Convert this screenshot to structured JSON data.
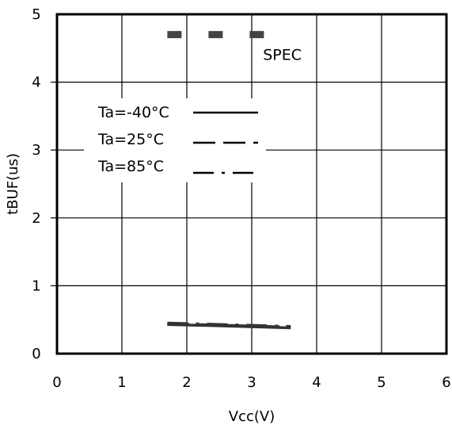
{
  "chart_data": {
    "type": "line",
    "title": "",
    "xlabel": "Vcc(V)",
    "ylabel": "tBUF(us)",
    "xlim": [
      0,
      6
    ],
    "ylim": [
      0,
      5
    ],
    "x_ticks": [
      "0",
      "1",
      "2",
      "3",
      "4",
      "5",
      "6"
    ],
    "y_ticks": [
      "0",
      "1",
      "2",
      "3",
      "4",
      "5"
    ],
    "grid": true,
    "legend_position": "upper-left",
    "series": [
      {
        "name": "Ta=-40°C",
        "style": "solid",
        "color": "#333333",
        "x": [
          1.7,
          2.5,
          3.6
        ],
        "y": [
          0.43,
          0.41,
          0.38
        ]
      },
      {
        "name": "Ta=25°C",
        "style": "dashed",
        "color": "#333333",
        "x": [
          1.7,
          2.5,
          3.6
        ],
        "y": [
          0.44,
          0.42,
          0.39
        ]
      },
      {
        "name": "Ta=85°C",
        "style": "dash-dot",
        "color": "#333333",
        "x": [
          1.7,
          2.5,
          3.6
        ],
        "y": [
          0.45,
          0.43,
          0.4
        ]
      },
      {
        "name": "",
        "style": "bold-dashed",
        "color": "#444444",
        "x": [
          1.7,
          3.2
        ],
        "y": [
          4.7,
          4.7
        ]
      }
    ],
    "annotations": [
      {
        "text": "SPEC",
        "x": 3.1,
        "y": 4.4
      }
    ]
  }
}
